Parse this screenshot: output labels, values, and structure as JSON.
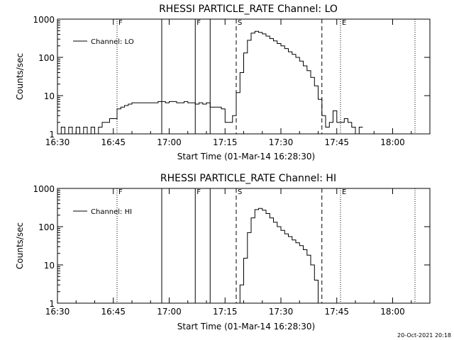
{
  "footer": {
    "timestamp": "20-Oct-2021 20:18"
  },
  "chart_data": [
    {
      "type": "line",
      "title": "RHESSI PARTICLE_RATE Channel: LO",
      "xlabel": "Start Time (01-Mar-14 16:28:30)",
      "ylabel": "Counts/sec",
      "xscale": "time",
      "yscale": "log",
      "xlim": [
        "16:30",
        "18:10"
      ],
      "ylim": [
        1,
        1000
      ],
      "x_ticks": [
        "16:30",
        "16:45",
        "17:00",
        "17:15",
        "17:30",
        "17:45",
        "18:00"
      ],
      "y_ticks": [
        "1",
        "10",
        "100",
        "1000"
      ],
      "legend": {
        "position": "top-left",
        "entries": [
          "Channel: LO"
        ]
      },
      "event_markers": [
        {
          "label": "F",
          "time": "16:46",
          "style": "dotted"
        },
        {
          "label": "",
          "time": "16:58",
          "style": "solid"
        },
        {
          "label": "F",
          "time": "17:07",
          "style": "solid"
        },
        {
          "label": "",
          "time": "17:11",
          "style": "solid"
        },
        {
          "label": "S",
          "time": "17:18",
          "style": "dashed"
        },
        {
          "label": "",
          "time": "17:41",
          "style": "dashed"
        },
        {
          "label": "E",
          "time": "17:46",
          "style": "dotted"
        },
        {
          "label": "",
          "time": "18:06",
          "style": "dotted"
        }
      ],
      "series": [
        {
          "name": "Channel: LO",
          "x": [
            "16:30",
            "16:31",
            "16:32",
            "16:33",
            "16:34",
            "16:35",
            "16:36",
            "16:37",
            "16:38",
            "16:39",
            "16:40",
            "16:41",
            "16:42",
            "16:43",
            "16:44",
            "16:45",
            "16:46",
            "16:47",
            "16:48",
            "16:49",
            "16:50",
            "16:51",
            "16:52",
            "16:53",
            "16:54",
            "16:55",
            "16:56",
            "16:57",
            "16:58",
            "16:59",
            "17:00",
            "17:01",
            "17:02",
            "17:03",
            "17:04",
            "17:05",
            "17:06",
            "17:07",
            "17:08",
            "17:09",
            "17:10",
            "17:11",
            "17:12",
            "17:13",
            "17:14",
            "17:15",
            "17:16",
            "17:17",
            "17:18",
            "17:19",
            "17:20",
            "17:21",
            "17:22",
            "17:23",
            "17:24",
            "17:25",
            "17:26",
            "17:27",
            "17:28",
            "17:29",
            "17:30",
            "17:31",
            "17:32",
            "17:33",
            "17:34",
            "17:35",
            "17:36",
            "17:37",
            "17:38",
            "17:39",
            "17:40",
            "17:41",
            "17:42",
            "17:43",
            "17:44",
            "17:45",
            "17:46",
            "17:47",
            "17:48",
            "17:49",
            "17:50",
            "17:51"
          ],
          "values": [
            1,
            1.5,
            1,
            1.5,
            1,
            1.5,
            1,
            1.5,
            1,
            1.5,
            1,
            1.5,
            2,
            2,
            2.5,
            2.5,
            4.5,
            5,
            5.5,
            6,
            6.5,
            6.5,
            6.5,
            6.5,
            6.5,
            6.5,
            6.5,
            7,
            7,
            6.5,
            7,
            7,
            6.5,
            6.5,
            7,
            6.5,
            6.5,
            6,
            6.5,
            6,
            6.5,
            5,
            5,
            5,
            4.5,
            2,
            2,
            3,
            12,
            40,
            130,
            280,
            430,
            480,
            450,
            410,
            360,
            310,
            270,
            230,
            200,
            170,
            140,
            120,
            100,
            80,
            60,
            45,
            30,
            18,
            8,
            3,
            1.5,
            2,
            4,
            2,
            2,
            2.5,
            2,
            1.5,
            1,
            1.5
          ]
        }
      ]
    },
    {
      "type": "line",
      "title": "RHESSI PARTICLE_RATE Channel: HI",
      "xlabel": "Start Time (01-Mar-14 16:28:30)",
      "ylabel": "Counts/sec",
      "xscale": "time",
      "yscale": "log",
      "xlim": [
        "16:30",
        "18:10"
      ],
      "ylim": [
        1,
        1000
      ],
      "x_ticks": [
        "16:30",
        "16:45",
        "17:00",
        "17:15",
        "17:30",
        "17:45",
        "18:00"
      ],
      "y_ticks": [
        "1",
        "10",
        "100",
        "1000"
      ],
      "legend": {
        "position": "top-left",
        "entries": [
          "Channel: HI"
        ]
      },
      "event_markers": [
        {
          "label": "F",
          "time": "16:46",
          "style": "dotted"
        },
        {
          "label": "",
          "time": "16:58",
          "style": "solid"
        },
        {
          "label": "F",
          "time": "17:07",
          "style": "solid"
        },
        {
          "label": "",
          "time": "17:11",
          "style": "solid"
        },
        {
          "label": "S",
          "time": "17:18",
          "style": "dashed"
        },
        {
          "label": "",
          "time": "17:41",
          "style": "dashed"
        },
        {
          "label": "E",
          "time": "17:46",
          "style": "dotted"
        },
        {
          "label": "",
          "time": "18:06",
          "style": "dotted"
        }
      ],
      "series": [
        {
          "name": "Channel: HI",
          "x": [
            "17:18",
            "17:19",
            "17:20",
            "17:21",
            "17:22",
            "17:23",
            "17:24",
            "17:25",
            "17:26",
            "17:27",
            "17:28",
            "17:29",
            "17:30",
            "17:31",
            "17:32",
            "17:33",
            "17:34",
            "17:35",
            "17:36",
            "17:37",
            "17:38",
            "17:39",
            "17:40"
          ],
          "values": [
            1,
            3,
            15,
            70,
            170,
            280,
            300,
            270,
            220,
            170,
            130,
            100,
            80,
            65,
            55,
            45,
            38,
            32,
            25,
            18,
            10,
            4,
            1
          ]
        }
      ]
    }
  ]
}
